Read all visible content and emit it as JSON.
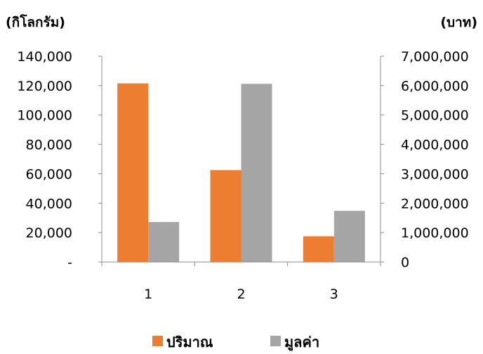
{
  "chart_data": {
    "type": "bar",
    "categories": [
      "1",
      "2",
      "3"
    ],
    "series": [
      {
        "name": "ปริมาณ",
        "axis": "left",
        "color": "#ED7D31",
        "values": [
          121500,
          62500,
          17500
        ]
      },
      {
        "name": "มูลค่า",
        "axis": "right",
        "color": "#A5A5A5",
        "values": [
          1360000,
          6060000,
          1740000
        ]
      }
    ],
    "y_left": {
      "label": "(กิโลกรัม)",
      "ylim": [
        0,
        140000
      ],
      "ticks": [
        0,
        20000,
        40000,
        60000,
        80000,
        100000,
        120000,
        140000
      ],
      "tick_labels": [
        "-",
        "20,000",
        "40,000",
        "60,000",
        "80,000",
        "100,000",
        "120,000",
        "140,000"
      ]
    },
    "y_right": {
      "label": "(บาท)",
      "ylim": [
        0,
        7000000
      ],
      "ticks": [
        0,
        1000000,
        2000000,
        3000000,
        4000000,
        5000000,
        6000000,
        7000000
      ],
      "tick_labels": [
        "0",
        "1,000,000",
        "2,000,000",
        "3,000,000",
        "4,000,000",
        "5,000,000",
        "6,000,000",
        "7,000,000"
      ]
    },
    "legend_position": "bottom",
    "grid": false
  }
}
